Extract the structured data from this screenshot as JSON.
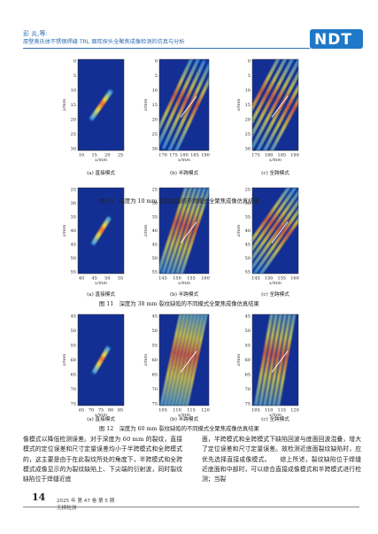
{
  "header": {
    "author": "彭 炎,等:",
    "title": "厚壁奥氏体不锈钢焊缝 TRL 面阵探头全聚焦成像检测的仿真与分析",
    "logo": "NDT"
  },
  "figures": [
    {
      "caption": "图 10　深度为 10 mm 裂纹缺陷的不同模式全聚焦成像仿真结果",
      "panels": [
        {
          "label": "(a) 直接模式",
          "x_ticks": [
            "10",
            "15",
            "20",
            "25"
          ],
          "y_ticks": [
            "0",
            "5",
            "10",
            "15",
            "20",
            "25",
            "30"
          ],
          "xlabel": "x/mm",
          "ylabel": "z/mm"
        },
        {
          "label": "(b) 半跨模式",
          "x_ticks": [
            "170",
            "175",
            "180",
            "185",
            "190"
          ],
          "y_ticks": [
            "0",
            "5",
            "10",
            "15",
            "20",
            "25",
            "30"
          ],
          "xlabel": "x/mm",
          "ylabel": "z/mm"
        },
        {
          "label": "(c) 全跨模式",
          "x_ticks": [
            "175",
            "180",
            "185",
            "190"
          ],
          "y_ticks": [
            "0",
            "5",
            "10",
            "15",
            "20",
            "25",
            "30"
          ],
          "xlabel": "x/mm",
          "ylabel": "z/mm"
        }
      ]
    },
    {
      "caption": "图 11　深度为 38 mm 裂纹缺陷的不同模式全聚焦成像仿真结果",
      "panels": [
        {
          "label": "(a) 直接模式",
          "x_ticks": [
            "40",
            "45",
            "50",
            "55"
          ],
          "y_ticks": [
            "25",
            "30",
            "35",
            "40",
            "45",
            "50",
            "55"
          ],
          "xlabel": "x/mm",
          "ylabel": "z/mm"
        },
        {
          "label": "(b) 半跨模式",
          "x_ticks": [
            "145",
            "150",
            "155",
            "160"
          ],
          "y_ticks": [
            "25",
            "30",
            "35",
            "40",
            "45",
            "50",
            "55"
          ],
          "xlabel": "x/mm",
          "ylabel": "z/mm"
        },
        {
          "label": "(c) 全跨模式",
          "x_ticks": [
            "145",
            "150",
            "155",
            "160"
          ],
          "y_ticks": [
            "25",
            "30",
            "35",
            "40",
            "45",
            "50",
            "55"
          ],
          "xlabel": "x/mm",
          "ylabel": "z/mm"
        }
      ]
    },
    {
      "caption": "图 12　深度为 60 mm 裂纹缺陷的不同模式全聚焦成像仿真结果",
      "panels": [
        {
          "label": "(a) 直接模式",
          "x_ticks": [
            "65",
            "70",
            "75",
            "80",
            "85"
          ],
          "y_ticks": [
            "45",
            "50",
            "55",
            "60",
            "65",
            "70",
            "75"
          ],
          "xlabel": "x/mm",
          "ylabel": "z/mm"
        },
        {
          "label": "(b) 半跨模式",
          "x_ticks": [
            "105",
            "110",
            "115",
            "120"
          ],
          "y_ticks": [
            "45",
            "50",
            "55",
            "60",
            "65",
            "70",
            "75"
          ],
          "xlabel": "x/mm",
          "ylabel": "z/mm"
        },
        {
          "label": "(c) 全跨模式",
          "x_ticks": [
            "105",
            "110",
            "115",
            "120"
          ],
          "y_ticks": [
            "45",
            "50",
            "55",
            "60",
            "65",
            "70",
            "75"
          ],
          "xlabel": "x/mm",
          "ylabel": "z/mm"
        }
      ]
    }
  ],
  "body_left": "像模式以降低检测误差。对于深度为 60 mm 的裂纹，直接模式的定位误差和尺寸定量误差均小于半跨模式和全跨模式的，这主要是由于在此裂纹所处的角度下，半跨模式和全跨模式成像显示的为裂纹缺陷上、下尖端的衍射波，同时裂纹缺陷位于焊缝近底",
  "body_right": "面，半跨模式和全跨模式下缺陷回波与底面回波混叠，增大了定位误差和尺寸定量误差。故检测近底面裂纹缺陷时，应优先选择直接成像模式。　　综上所述，裂纹缺陷位于焊缝近底面和中部时，可以综合直接成像模式和半跨模式进行检测；当裂",
  "footer": {
    "page": "14",
    "issue": "2025 年 第 47 卷 第 5 期",
    "journal": "无损检测"
  },
  "colors": {
    "accent": "#2f6fb3",
    "image_bg": "#142f93"
  }
}
